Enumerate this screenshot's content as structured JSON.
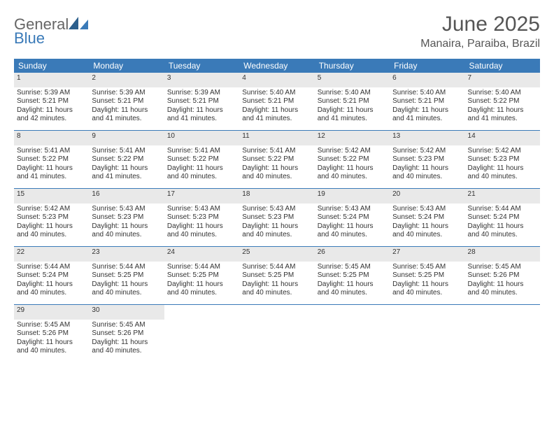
{
  "logo": {
    "text_top": "General",
    "text_bottom": "Blue"
  },
  "title": "June 2025",
  "location": "Manaira, Paraiba, Brazil",
  "colors": {
    "header_bg": "#3a7ab8",
    "header_text": "#ffffff",
    "daynum_bg": "#e9e9e9",
    "row_border": "#3a7ab8",
    "page_bg": "#ffffff",
    "body_text": "#333333",
    "logo_blue": "#3a7ab8",
    "logo_gray": "#666666"
  },
  "typography": {
    "title_fontsize": 30,
    "location_fontsize": 16,
    "header_fontsize": 12,
    "daynum_fontsize": 11,
    "cell_fontsize": 10,
    "font_family": "Arial"
  },
  "weekdays": [
    "Sunday",
    "Monday",
    "Tuesday",
    "Wednesday",
    "Thursday",
    "Friday",
    "Saturday"
  ],
  "weeks": [
    {
      "nums": [
        "1",
        "2",
        "3",
        "4",
        "5",
        "6",
        "7"
      ],
      "cells": [
        {
          "sunrise": "Sunrise: 5:39 AM",
          "sunset": "Sunset: 5:21 PM",
          "day1": "Daylight: 11 hours",
          "day2": "and 42 minutes."
        },
        {
          "sunrise": "Sunrise: 5:39 AM",
          "sunset": "Sunset: 5:21 PM",
          "day1": "Daylight: 11 hours",
          "day2": "and 41 minutes."
        },
        {
          "sunrise": "Sunrise: 5:39 AM",
          "sunset": "Sunset: 5:21 PM",
          "day1": "Daylight: 11 hours",
          "day2": "and 41 minutes."
        },
        {
          "sunrise": "Sunrise: 5:40 AM",
          "sunset": "Sunset: 5:21 PM",
          "day1": "Daylight: 11 hours",
          "day2": "and 41 minutes."
        },
        {
          "sunrise": "Sunrise: 5:40 AM",
          "sunset": "Sunset: 5:21 PM",
          "day1": "Daylight: 11 hours",
          "day2": "and 41 minutes."
        },
        {
          "sunrise": "Sunrise: 5:40 AM",
          "sunset": "Sunset: 5:21 PM",
          "day1": "Daylight: 11 hours",
          "day2": "and 41 minutes."
        },
        {
          "sunrise": "Sunrise: 5:40 AM",
          "sunset": "Sunset: 5:22 PM",
          "day1": "Daylight: 11 hours",
          "day2": "and 41 minutes."
        }
      ]
    },
    {
      "nums": [
        "8",
        "9",
        "10",
        "11",
        "12",
        "13",
        "14"
      ],
      "cells": [
        {
          "sunrise": "Sunrise: 5:41 AM",
          "sunset": "Sunset: 5:22 PM",
          "day1": "Daylight: 11 hours",
          "day2": "and 41 minutes."
        },
        {
          "sunrise": "Sunrise: 5:41 AM",
          "sunset": "Sunset: 5:22 PM",
          "day1": "Daylight: 11 hours",
          "day2": "and 41 minutes."
        },
        {
          "sunrise": "Sunrise: 5:41 AM",
          "sunset": "Sunset: 5:22 PM",
          "day1": "Daylight: 11 hours",
          "day2": "and 40 minutes."
        },
        {
          "sunrise": "Sunrise: 5:41 AM",
          "sunset": "Sunset: 5:22 PM",
          "day1": "Daylight: 11 hours",
          "day2": "and 40 minutes."
        },
        {
          "sunrise": "Sunrise: 5:42 AM",
          "sunset": "Sunset: 5:22 PM",
          "day1": "Daylight: 11 hours",
          "day2": "and 40 minutes."
        },
        {
          "sunrise": "Sunrise: 5:42 AM",
          "sunset": "Sunset: 5:23 PM",
          "day1": "Daylight: 11 hours",
          "day2": "and 40 minutes."
        },
        {
          "sunrise": "Sunrise: 5:42 AM",
          "sunset": "Sunset: 5:23 PM",
          "day1": "Daylight: 11 hours",
          "day2": "and 40 minutes."
        }
      ]
    },
    {
      "nums": [
        "15",
        "16",
        "17",
        "18",
        "19",
        "20",
        "21"
      ],
      "cells": [
        {
          "sunrise": "Sunrise: 5:42 AM",
          "sunset": "Sunset: 5:23 PM",
          "day1": "Daylight: 11 hours",
          "day2": "and 40 minutes."
        },
        {
          "sunrise": "Sunrise: 5:43 AM",
          "sunset": "Sunset: 5:23 PM",
          "day1": "Daylight: 11 hours",
          "day2": "and 40 minutes."
        },
        {
          "sunrise": "Sunrise: 5:43 AM",
          "sunset": "Sunset: 5:23 PM",
          "day1": "Daylight: 11 hours",
          "day2": "and 40 minutes."
        },
        {
          "sunrise": "Sunrise: 5:43 AM",
          "sunset": "Sunset: 5:23 PM",
          "day1": "Daylight: 11 hours",
          "day2": "and 40 minutes."
        },
        {
          "sunrise": "Sunrise: 5:43 AM",
          "sunset": "Sunset: 5:24 PM",
          "day1": "Daylight: 11 hours",
          "day2": "and 40 minutes."
        },
        {
          "sunrise": "Sunrise: 5:43 AM",
          "sunset": "Sunset: 5:24 PM",
          "day1": "Daylight: 11 hours",
          "day2": "and 40 minutes."
        },
        {
          "sunrise": "Sunrise: 5:44 AM",
          "sunset": "Sunset: 5:24 PM",
          "day1": "Daylight: 11 hours",
          "day2": "and 40 minutes."
        }
      ]
    },
    {
      "nums": [
        "22",
        "23",
        "24",
        "25",
        "26",
        "27",
        "28"
      ],
      "cells": [
        {
          "sunrise": "Sunrise: 5:44 AM",
          "sunset": "Sunset: 5:24 PM",
          "day1": "Daylight: 11 hours",
          "day2": "and 40 minutes."
        },
        {
          "sunrise": "Sunrise: 5:44 AM",
          "sunset": "Sunset: 5:25 PM",
          "day1": "Daylight: 11 hours",
          "day2": "and 40 minutes."
        },
        {
          "sunrise": "Sunrise: 5:44 AM",
          "sunset": "Sunset: 5:25 PM",
          "day1": "Daylight: 11 hours",
          "day2": "and 40 minutes."
        },
        {
          "sunrise": "Sunrise: 5:44 AM",
          "sunset": "Sunset: 5:25 PM",
          "day1": "Daylight: 11 hours",
          "day2": "and 40 minutes."
        },
        {
          "sunrise": "Sunrise: 5:45 AM",
          "sunset": "Sunset: 5:25 PM",
          "day1": "Daylight: 11 hours",
          "day2": "and 40 minutes."
        },
        {
          "sunrise": "Sunrise: 5:45 AM",
          "sunset": "Sunset: 5:25 PM",
          "day1": "Daylight: 11 hours",
          "day2": "and 40 minutes."
        },
        {
          "sunrise": "Sunrise: 5:45 AM",
          "sunset": "Sunset: 5:26 PM",
          "day1": "Daylight: 11 hours",
          "day2": "and 40 minutes."
        }
      ]
    },
    {
      "nums": [
        "29",
        "30",
        "",
        "",
        "",
        "",
        ""
      ],
      "cells": [
        {
          "sunrise": "Sunrise: 5:45 AM",
          "sunset": "Sunset: 5:26 PM",
          "day1": "Daylight: 11 hours",
          "day2": "and 40 minutes."
        },
        {
          "sunrise": "Sunrise: 5:45 AM",
          "sunset": "Sunset: 5:26 PM",
          "day1": "Daylight: 11 hours",
          "day2": "and 40 minutes."
        },
        null,
        null,
        null,
        null,
        null
      ]
    }
  ]
}
